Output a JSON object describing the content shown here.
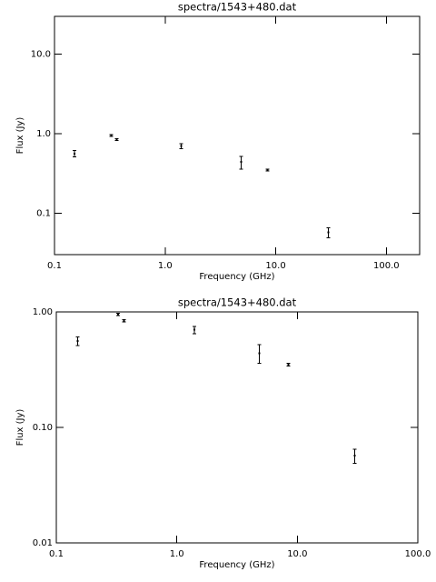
{
  "chart_data": [
    {
      "type": "scatter",
      "title": "spectra/1543+480.dat",
      "x_label": "Frequency (GHz)",
      "y_label": "Flux (Jy)",
      "log_x": true,
      "log_y": true,
      "xlim": [
        0.1,
        200
      ],
      "ylim": [
        0.03,
        30
      ],
      "xticks": [
        0.1,
        {
          "value": 1,
          "label": "1.0"
        },
        {
          "value": 10,
          "label": "10.0"
        },
        {
          "value": 100,
          "label": "100.0"
        }
      ],
      "yticks": [
        0.1,
        {
          "value": 1,
          "label": "1.0"
        },
        {
          "value": 10,
          "label": "10.0"
        }
      ],
      "series": [
        {
          "color": "#000000",
          "x": [
            0.151,
            0.325,
            0.365,
            1.4,
            4.85,
            8.4,
            30
          ],
          "values": [
            0.56,
            0.95,
            0.84,
            0.7,
            0.44,
            0.35,
            0.057
          ],
          "errors": [
            0.05,
            0.02,
            0.02,
            0.05,
            0.08,
            0.01,
            0.008
          ]
        }
      ]
    },
    {
      "type": "scatter",
      "title": "spectra/1543+480.dat",
      "x_label": "Frequency (GHz)",
      "y_label": "Flux (Jy)",
      "log_x": true,
      "log_y": true,
      "xlim": [
        0.1,
        100
      ],
      "ylim": [
        0.01,
        1
      ],
      "xticks": [
        0.1,
        {
          "value": 1,
          "label": "1.0"
        },
        {
          "value": 10,
          "label": "10.0"
        },
        {
          "value": 100,
          "label": "100.0"
        }
      ],
      "yticks": [
        0.01,
        {
          "value": 0.1,
          "label": "0.10"
        },
        {
          "value": 1,
          "label": "1.00"
        }
      ],
      "series": [
        {
          "color": "#000000",
          "x": [
            0.151,
            0.325,
            0.365,
            1.4,
            4.85,
            8.4,
            30
          ],
          "values": [
            0.56,
            0.95,
            0.84,
            0.7,
            0.44,
            0.35,
            0.057
          ],
          "errors": [
            0.05,
            0.02,
            0.02,
            0.05,
            0.08,
            0.01,
            0.008
          ]
        }
      ]
    }
  ]
}
